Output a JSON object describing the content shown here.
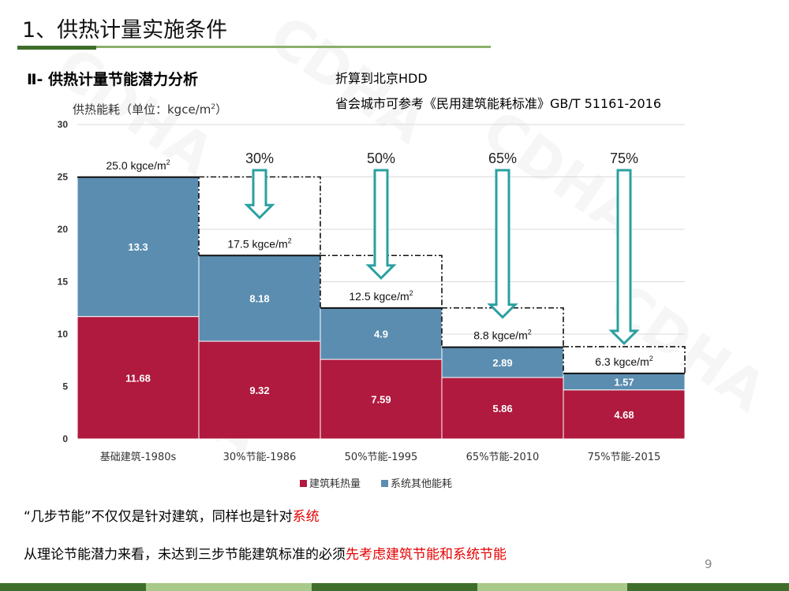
{
  "slide": {
    "title": "1、供热计量实施条件",
    "subtitle": "Ⅱ- 供热计量节能潜力分析",
    "note_line1": "折算到北京HDD",
    "note_line2": "省会城市可参考《民用建筑能耗标准》GB/T 51161-2016",
    "footer_line1_prefix": "“几步节能”不仅仅是针对建筑，同样也是针对",
    "footer_line1_highlight": "系统",
    "footer_line2_prefix": "从理论节能潜力来看，未达到三步节能建筑标准的必须",
    "footer_line2_highlight": "先考虑建筑节能和系统节能",
    "page_number": "9",
    "watermark": "CDHA",
    "colors": {
      "title_rule": "#8bb06a",
      "highlight": "#e60000"
    }
  },
  "chart_data": {
    "type": "bar",
    "stacked": true,
    "ylabel_prefix": "供热能耗（单位：kgce/m",
    "ylabel_sup": "2",
    "ylabel_suffix": "）",
    "ylim": [
      0,
      30
    ],
    "yticks": [
      0,
      5,
      10,
      15,
      20,
      25,
      30
    ],
    "grid": true,
    "legend_position": "bottom",
    "categories": [
      "基础建筑-1980s",
      "30%节能-1986",
      "50%节能-1995",
      "65%节能-2010",
      "75%节能-2015"
    ],
    "series": [
      {
        "name": "建筑耗热量",
        "color": "#b01a3e",
        "values": [
          11.68,
          9.32,
          7.59,
          5.86,
          4.68
        ],
        "labels": [
          "11.68",
          "9.32",
          "7.59",
          "5.86",
          "4.68"
        ]
      },
      {
        "name": "系统其他能耗",
        "color": "#5b8db0",
        "values": [
          13.3,
          8.18,
          4.9,
          2.89,
          1.57
        ],
        "labels": [
          "13.3",
          "8.18",
          "4.9",
          "2.89",
          "1.57"
        ]
      }
    ],
    "totals": [
      "25.0 kgce/m",
      "17.5 kgce/m",
      "12.5 kgce/m",
      "8.8 kgce/m",
      "6.3 kgce/m"
    ],
    "total_values": [
      25.0,
      17.5,
      12.5,
      8.8,
      6.3
    ],
    "total_unit_sup": "2",
    "savings_labels": [
      "",
      "30%",
      "50%",
      "65%",
      "75%"
    ],
    "arrow_color": "#2aa0a0"
  }
}
